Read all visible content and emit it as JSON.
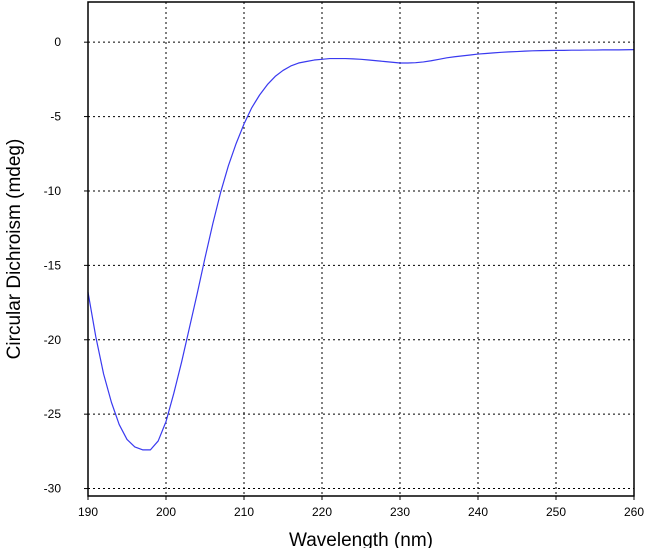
{
  "chart_data": {
    "type": "line",
    "title": "",
    "xlabel": "Wavelength (nm)",
    "ylabel": "Circular Dichroism (mdeg)",
    "xlim": [
      190,
      260
    ],
    "ylim": [
      -30.5,
      2.7
    ],
    "x_ticks": [
      190,
      200,
      210,
      220,
      230,
      240,
      250,
      260
    ],
    "y_ticks": [
      0,
      -5,
      -10,
      -15,
      -20,
      -25,
      -30
    ],
    "grid": true,
    "grid_style": "dotted",
    "line_color": "#3a3af0",
    "series": [
      {
        "name": "",
        "x": [
          190,
          191,
          192,
          193,
          194,
          195,
          196,
          197,
          198,
          199,
          200,
          201,
          202,
          203,
          204,
          205,
          206,
          207,
          208,
          209,
          210,
          211,
          212,
          213,
          214,
          215,
          216,
          217,
          218,
          219,
          220,
          221,
          222,
          223,
          224,
          225,
          226,
          227,
          228,
          229,
          230,
          231,
          232,
          233,
          234,
          235,
          236,
          237,
          238,
          239,
          240,
          241,
          242,
          243,
          244,
          245,
          246,
          247,
          248,
          249,
          250,
          251,
          252,
          253,
          254,
          255,
          256,
          257,
          258,
          259,
          260
        ],
        "y": [
          -16.8,
          -19.8,
          -22.3,
          -24.2,
          -25.7,
          -26.7,
          -27.2,
          -27.4,
          -27.4,
          -26.8,
          -25.5,
          -23.6,
          -21.5,
          -19.2,
          -16.9,
          -14.5,
          -12.2,
          -10.1,
          -8.3,
          -6.8,
          -5.5,
          -4.4,
          -3.55,
          -2.85,
          -2.3,
          -1.9,
          -1.6,
          -1.4,
          -1.3,
          -1.2,
          -1.15,
          -1.1,
          -1.1,
          -1.1,
          -1.12,
          -1.15,
          -1.2,
          -1.25,
          -1.3,
          -1.35,
          -1.4,
          -1.4,
          -1.38,
          -1.33,
          -1.25,
          -1.15,
          -1.05,
          -0.98,
          -0.92,
          -0.86,
          -0.8,
          -0.76,
          -0.72,
          -0.68,
          -0.65,
          -0.63,
          -0.6,
          -0.58,
          -0.57,
          -0.56,
          -0.55,
          -0.55,
          -0.54,
          -0.54,
          -0.53,
          -0.53,
          -0.52,
          -0.52,
          -0.52,
          -0.51,
          -0.5
        ]
      }
    ]
  }
}
